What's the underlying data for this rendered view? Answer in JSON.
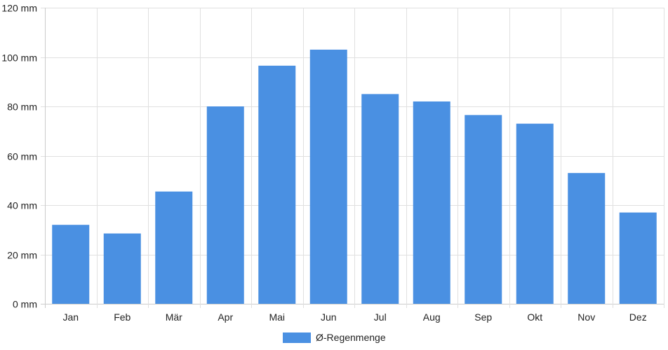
{
  "chart_data": {
    "type": "bar",
    "categories": [
      "Jan",
      "Feb",
      "Mär",
      "Apr",
      "Mai",
      "Jun",
      "Jul",
      "Aug",
      "Sep",
      "Okt",
      "Nov",
      "Dez"
    ],
    "series": [
      {
        "name": "Ø-Regenmenge",
        "values": [
          32,
          28.5,
          45.5,
          80,
          96.5,
          103,
          85,
          82,
          76.5,
          73,
          53,
          37
        ]
      }
    ],
    "y_unit": "mm",
    "y_ticks": [
      0,
      20,
      40,
      60,
      80,
      100,
      120
    ],
    "y_tick_labels": [
      "0 mm",
      "20 mm",
      "40 mm",
      "60 mm",
      "80 mm",
      "100 mm",
      "120 mm"
    ],
    "ylim": [
      0,
      120
    ],
    "grid": true,
    "legend_position": "bottom-center",
    "colors": {
      "bar": "#4a90e2",
      "grid": "#e0e0e0",
      "axis": "#cccccc"
    }
  }
}
